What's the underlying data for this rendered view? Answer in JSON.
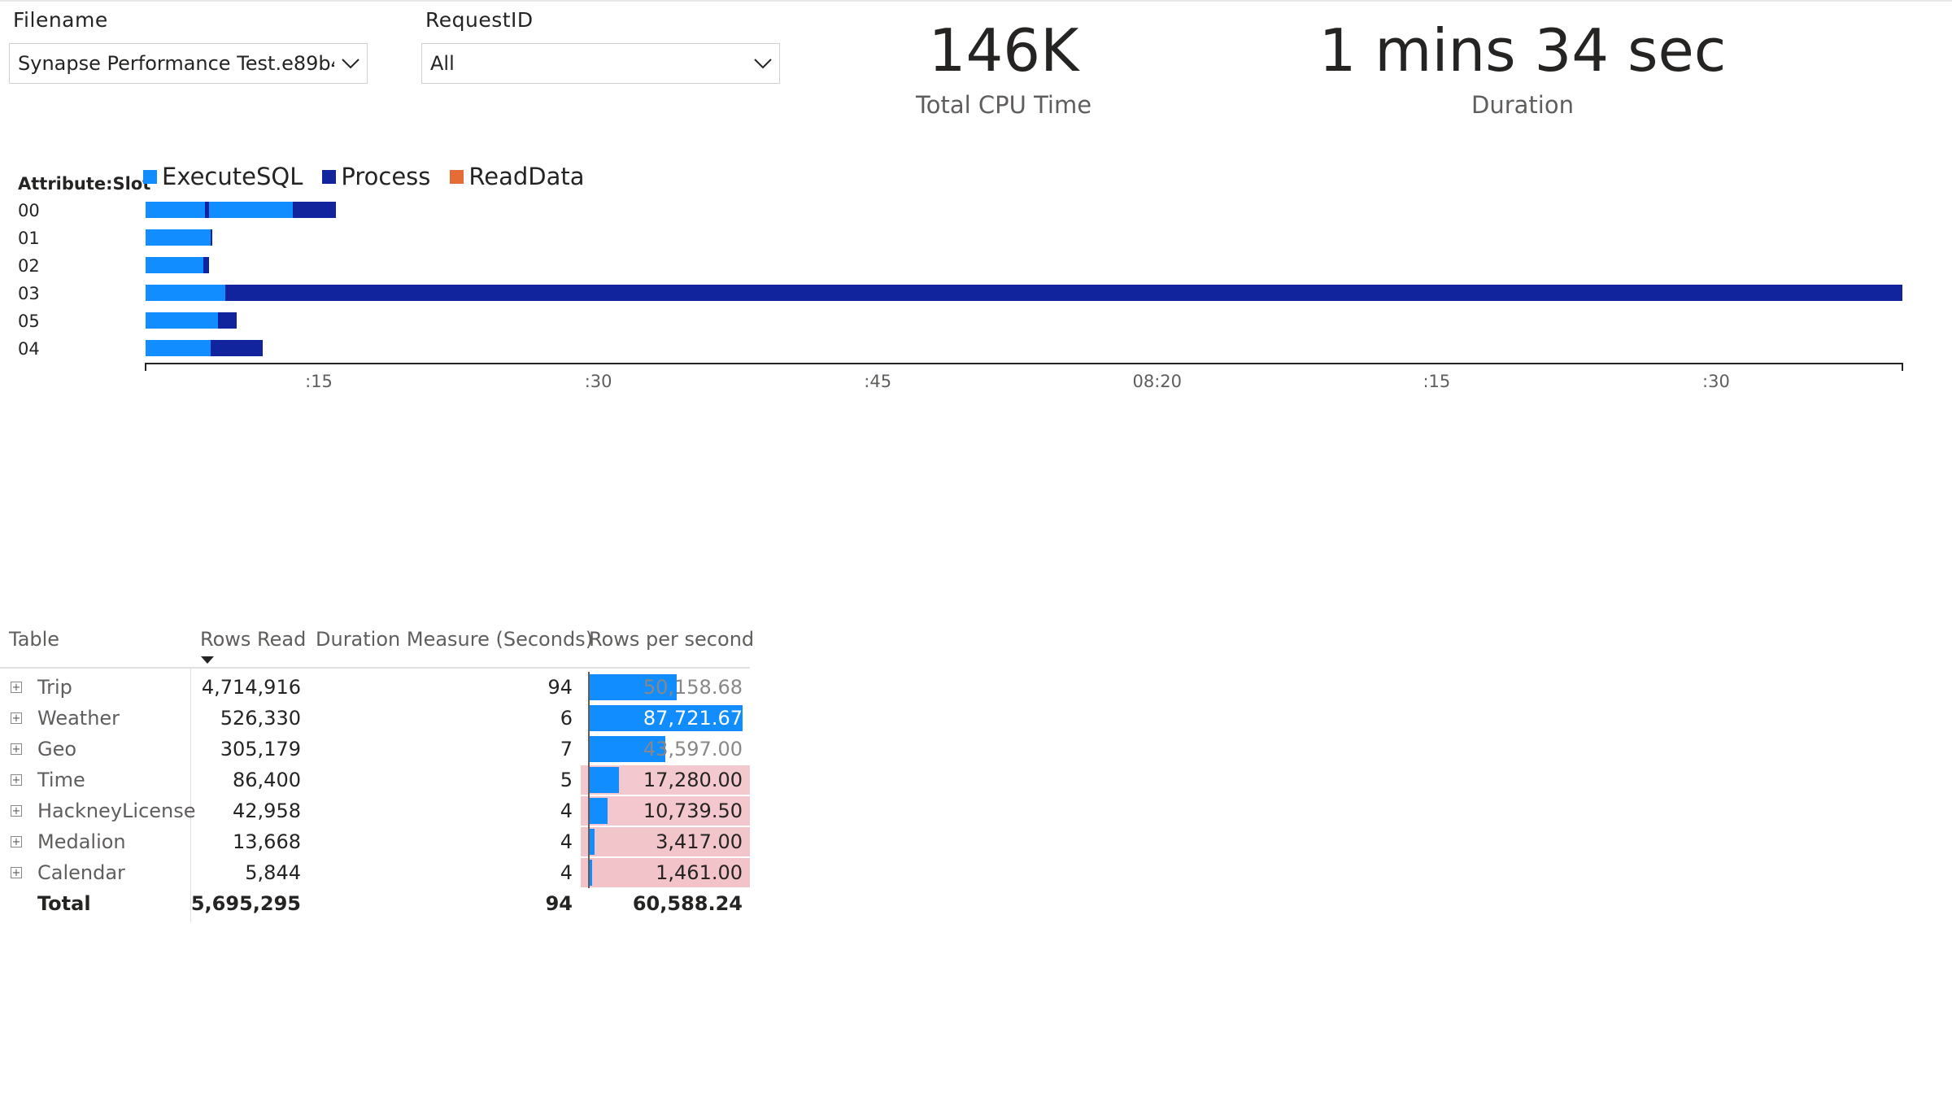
{
  "filters": {
    "filename": {
      "title": "Filename",
      "value": "Synapse Performance Test.e89b4..."
    },
    "request": {
      "title": "RequestID",
      "value": "All"
    }
  },
  "cards": {
    "cpu": {
      "value": "146K",
      "label": "Total CPU Time"
    },
    "duration": {
      "value": "1 mins 34 sec",
      "label": "Duration"
    }
  },
  "gantt": {
    "axis_title": "Attribute:Slot",
    "legend": [
      {
        "name": "ExecuteSQL",
        "color": "#118DFF"
      },
      {
        "name": "Process",
        "color": "#12239E"
      },
      {
        "name": "ReadData",
        "color": "#E66C37"
      }
    ],
    "x_ticks": [
      ":15",
      ":30",
      ":45",
      "08:20",
      ":15",
      ":30"
    ],
    "x_range_seconds": [
      0,
      94.3
    ],
    "tick_positions_seconds": [
      9.3,
      24.3,
      39.3,
      54.3,
      69.3,
      84.3
    ]
  },
  "chart_data": {
    "type": "bar",
    "orientation": "horizontal-gantt",
    "title": "",
    "xlabel": "",
    "ylabel": "Attribute:Slot",
    "categories": [
      "00",
      "01",
      "02",
      "03",
      "05",
      "04"
    ],
    "series": [
      {
        "name": "ExecuteSQL",
        "segments": [
          [
            [
              0,
              3.2
            ],
            [
              3.4,
              7.9
            ]
          ],
          [
            [
              0,
              3.5
            ]
          ],
          [
            [
              0,
              3.1
            ]
          ],
          [
            [
              0,
              4.3
            ]
          ],
          [
            [
              0,
              3.9
            ]
          ],
          [
            [
              0,
              3.5
            ]
          ]
        ]
      },
      {
        "name": "Process",
        "segments": [
          [
            [
              3.2,
              3.4
            ],
            [
              7.9,
              10.2
            ]
          ],
          [
            [
              3.5,
              3.6
            ]
          ],
          [
            [
              3.1,
              3.4
            ]
          ],
          [
            [
              4.3,
              94.3
            ]
          ],
          [
            [
              3.9,
              4.9
            ]
          ],
          [
            [
              3.5,
              6.3
            ]
          ]
        ]
      },
      {
        "name": "ReadData",
        "segments": [
          [],
          [],
          [],
          [],
          [],
          []
        ]
      }
    ]
  },
  "table": {
    "columns": [
      "Table",
      "Rows Read",
      "Duration Measure (Seconds)",
      "Rows per second"
    ],
    "rows": [
      {
        "name": "Trip",
        "rows_read": "4,714,916",
        "duration": "94",
        "rps": "50,158.68",
        "rps_value": 50158.68
      },
      {
        "name": "Weather",
        "rows_read": "526,330",
        "duration": "6",
        "rps": "87,721.67",
        "rps_value": 87721.67
      },
      {
        "name": "Geo",
        "rows_read": "305,179",
        "duration": "7",
        "rps": "43,597.00",
        "rps_value": 43597.0
      },
      {
        "name": "Time",
        "rows_read": "86,400",
        "duration": "5",
        "rps": "17,280.00",
        "rps_value": 17280.0
      },
      {
        "name": "HackneyLicense",
        "rows_read": "42,958",
        "duration": "4",
        "rps": "10,739.50",
        "rps_value": 10739.5
      },
      {
        "name": "Medalion",
        "rows_read": "13,668",
        "duration": "4",
        "rps": "3,417.00",
        "rps_value": 3417.0
      },
      {
        "name": "Calendar",
        "rows_read": "5,844",
        "duration": "4",
        "rps": "1,461.00",
        "rps_value": 1461.0
      }
    ],
    "total": {
      "label": "Total",
      "rows_read": "5,695,295",
      "duration": "94",
      "rps": "60,588.24"
    },
    "colors": {
      "bar": "#118DFF",
      "low_bg": "#F2C4CA"
    }
  }
}
